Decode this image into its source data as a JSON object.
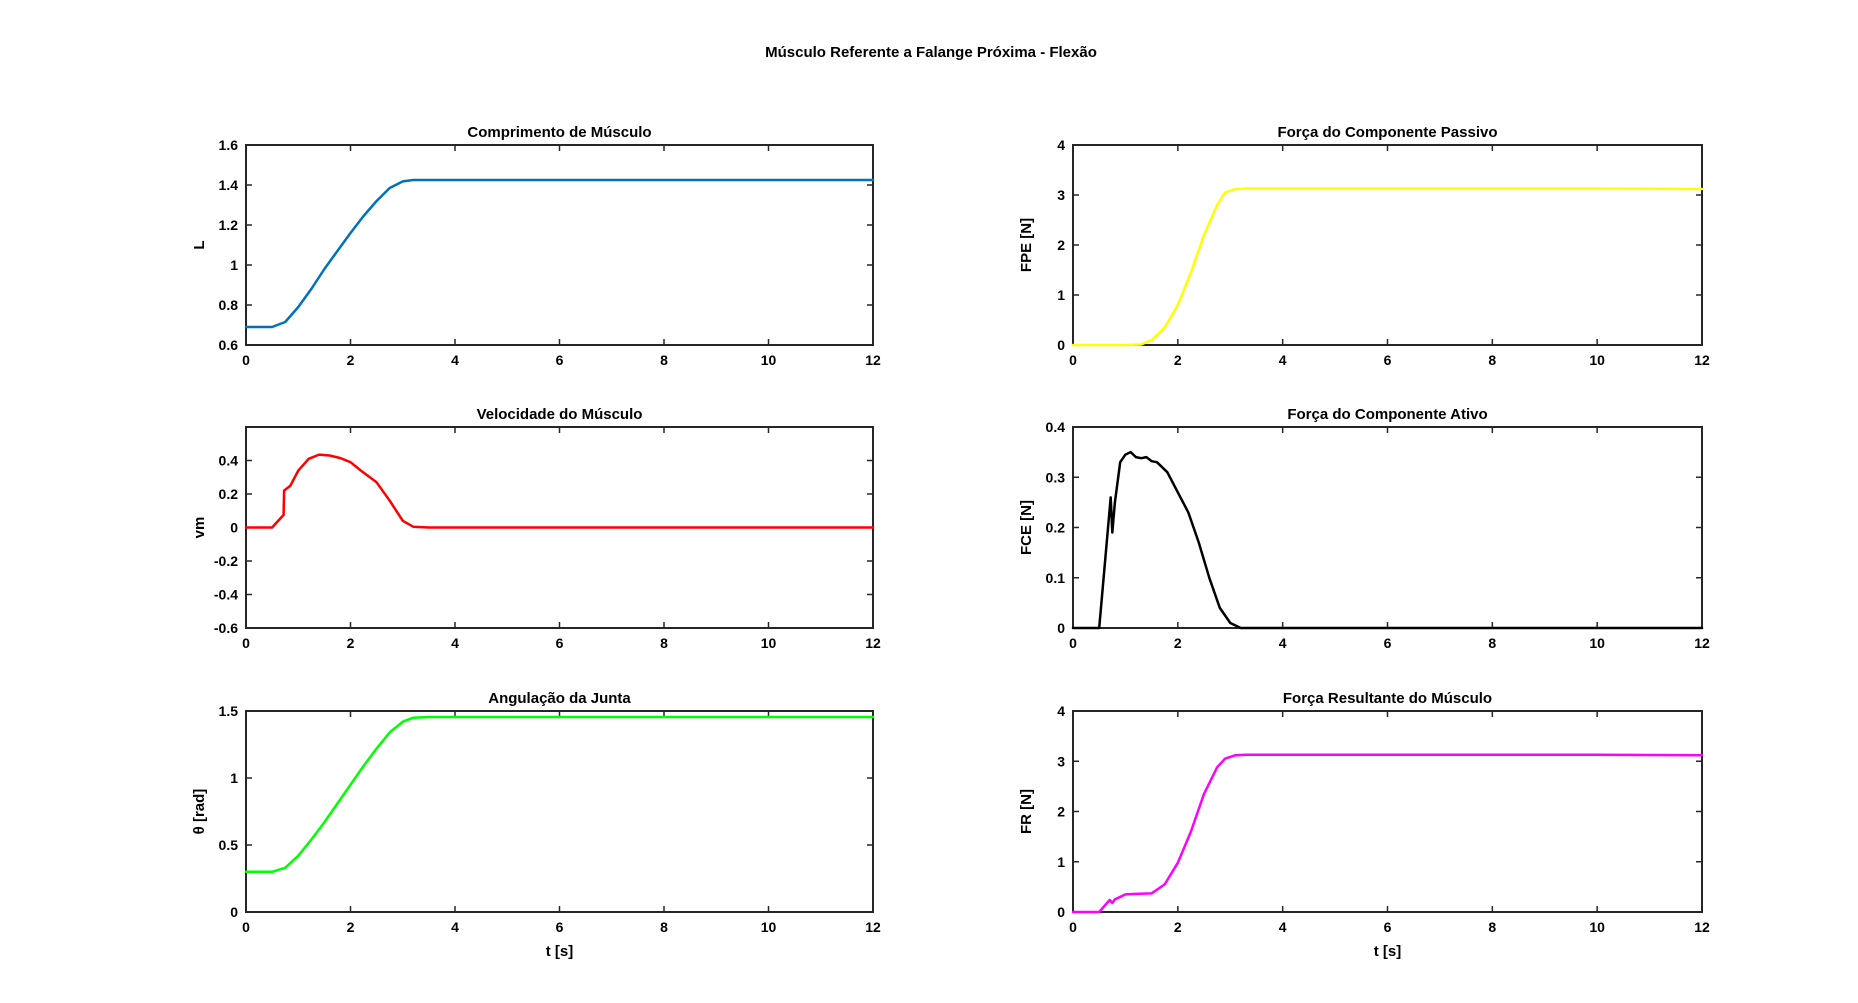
{
  "figure": {
    "suptitle": "Músculo Referente a Falange Próxima - Flexão"
  },
  "chart_data": [
    {
      "type": "line",
      "title": "Comprimento de Músculo",
      "xlabel": "",
      "ylabel": "L",
      "xlim": [
        0,
        12
      ],
      "ylim": [
        0.6,
        1.6
      ],
      "xticks": [
        0,
        2,
        4,
        6,
        8,
        10,
        12
      ],
      "yticks": [
        0.6,
        0.8,
        1,
        1.2,
        1.4,
        1.6
      ],
      "grid": false,
      "color": "#0072BD",
      "series": [
        {
          "x": [
            0,
            0.5,
            0.75,
            1.0,
            1.25,
            1.5,
            1.75,
            2.0,
            2.25,
            2.5,
            2.75,
            3.0,
            3.2,
            3.5,
            4,
            6,
            8,
            10,
            12
          ],
          "y": [
            0.69,
            0.69,
            0.715,
            0.79,
            0.88,
            0.98,
            1.07,
            1.16,
            1.245,
            1.32,
            1.385,
            1.418,
            1.425,
            1.425,
            1.425,
            1.425,
            1.425,
            1.425,
            1.425
          ]
        }
      ]
    },
    {
      "type": "line",
      "title": "Força do Componente Passivo",
      "xlabel": "",
      "ylabel": "FPE [N]",
      "xlim": [
        0,
        12
      ],
      "ylim": [
        0,
        4
      ],
      "xticks": [
        0,
        2,
        4,
        6,
        8,
        10,
        12
      ],
      "yticks": [
        0,
        1,
        2,
        3,
        4
      ],
      "grid": false,
      "color": "#FFFF00",
      "series": [
        {
          "x": [
            0,
            1.0,
            1.3,
            1.5,
            1.75,
            2.0,
            2.25,
            2.5,
            2.75,
            2.9,
            3.1,
            3.3,
            4,
            6,
            8,
            10,
            12
          ],
          "y": [
            0,
            0,
            0.01,
            0.1,
            0.35,
            0.8,
            1.45,
            2.2,
            2.8,
            3.05,
            3.12,
            3.13,
            3.13,
            3.13,
            3.13,
            3.13,
            3.12
          ]
        }
      ]
    },
    {
      "type": "line",
      "title": "Velocidade do Músculo",
      "xlabel": "",
      "ylabel": "vm",
      "xlim": [
        0,
        12
      ],
      "ylim": [
        -0.6,
        0.6
      ],
      "xticks": [
        0,
        2,
        4,
        6,
        8,
        10,
        12
      ],
      "yticks": [
        -0.6,
        -0.4,
        -0.2,
        0,
        0.2,
        0.4
      ],
      "grid": false,
      "color": "#FF0000",
      "series": [
        {
          "x": [
            0,
            0.5,
            0.72,
            0.73,
            0.85,
            1.0,
            1.2,
            1.4,
            1.6,
            1.8,
            2.0,
            2.2,
            2.5,
            2.75,
            3.0,
            3.2,
            3.5,
            4,
            6,
            8,
            10,
            12
          ],
          "y": [
            0,
            0,
            0.075,
            0.22,
            0.25,
            0.34,
            0.41,
            0.435,
            0.43,
            0.415,
            0.39,
            0.34,
            0.27,
            0.16,
            0.04,
            0.005,
            0,
            0,
            0,
            0,
            0,
            0
          ]
        }
      ]
    },
    {
      "type": "line",
      "title": "Força do Componente Ativo",
      "xlabel": "",
      "ylabel": "FCE [N]",
      "xlim": [
        0,
        12
      ],
      "ylim": [
        0,
        0.4
      ],
      "xticks": [
        0,
        2,
        4,
        6,
        8,
        10,
        12
      ],
      "yticks": [
        0,
        0.1,
        0.2,
        0.3,
        0.4
      ],
      "grid": false,
      "color": "#000000",
      "series": [
        {
          "x": [
            0,
            0.5,
            0.72,
            0.75,
            0.8,
            0.9,
            1.0,
            1.1,
            1.2,
            1.3,
            1.4,
            1.5,
            1.6,
            1.8,
            2.0,
            2.2,
            2.4,
            2.6,
            2.8,
            3.0,
            3.2,
            4,
            6,
            8,
            10,
            12
          ],
          "y": [
            0,
            0,
            0.26,
            0.19,
            0.25,
            0.33,
            0.345,
            0.35,
            0.34,
            0.338,
            0.34,
            0.332,
            0.33,
            0.31,
            0.27,
            0.23,
            0.17,
            0.1,
            0.04,
            0.01,
            0,
            0,
            0,
            0,
            0,
            0
          ]
        }
      ]
    },
    {
      "type": "line",
      "title": "Angulação da Junta",
      "xlabel": "t [s]",
      "ylabel": "θ [rad]",
      "xlim": [
        0,
        12
      ],
      "ylim": [
        0,
        1.5
      ],
      "xticks": [
        0,
        2,
        4,
        6,
        8,
        10,
        12
      ],
      "yticks": [
        0,
        0.5,
        1,
        1.5
      ],
      "grid": false,
      "color": "#00FF00",
      "series": [
        {
          "x": [
            0,
            0.5,
            0.75,
            1.0,
            1.25,
            1.5,
            1.75,
            2.0,
            2.25,
            2.5,
            2.75,
            3.0,
            3.2,
            3.5,
            4,
            6,
            8,
            10,
            12
          ],
          "y": [
            0.3,
            0.3,
            0.33,
            0.42,
            0.54,
            0.67,
            0.81,
            0.95,
            1.09,
            1.22,
            1.34,
            1.42,
            1.45,
            1.455,
            1.455,
            1.455,
            1.455,
            1.455,
            1.455
          ]
        }
      ]
    },
    {
      "type": "line",
      "title": "Força Resultante do Músculo",
      "xlabel": "t [s]",
      "ylabel": "FR [N]",
      "xlim": [
        0,
        12
      ],
      "ylim": [
        0,
        4
      ],
      "xticks": [
        0,
        2,
        4,
        6,
        8,
        10,
        12
      ],
      "yticks": [
        0,
        1,
        2,
        3,
        4
      ],
      "grid": false,
      "color": "#FF00FF",
      "series": [
        {
          "x": [
            0,
            0.5,
            0.7,
            0.75,
            0.8,
            0.9,
            1.0,
            1.2,
            1.5,
            1.75,
            2.0,
            2.25,
            2.5,
            2.75,
            2.9,
            3.1,
            3.3,
            4,
            6,
            8,
            10,
            12
          ],
          "y": [
            0,
            0,
            0.24,
            0.18,
            0.25,
            0.3,
            0.35,
            0.36,
            0.37,
            0.55,
            0.98,
            1.6,
            2.35,
            2.88,
            3.05,
            3.12,
            3.13,
            3.13,
            3.13,
            3.13,
            3.13,
            3.12
          ]
        }
      ]
    }
  ]
}
